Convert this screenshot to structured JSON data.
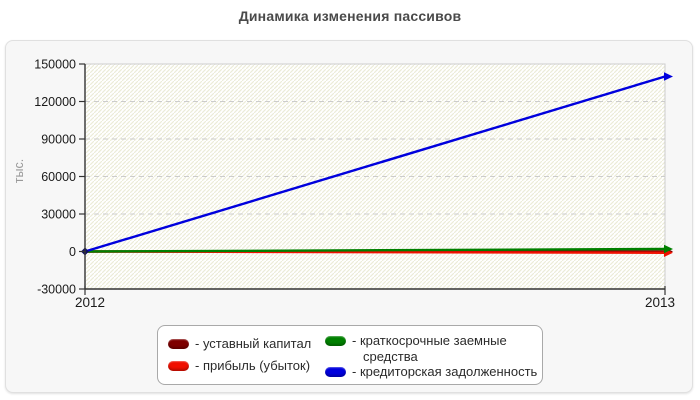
{
  "page": {
    "title": "Динамика изменения пассивов"
  },
  "chart_data": {
    "type": "line",
    "title": "Динамика изменения пассивов",
    "xlabel": "",
    "ylabel": "тыс.",
    "x": [
      2012,
      2013
    ],
    "xticklabels": [
      "2012",
      "2013"
    ],
    "yticks": [
      -30000,
      0,
      30000,
      60000,
      90000,
      120000,
      150000
    ],
    "ylim": [
      -30000,
      150000
    ],
    "grid": "horizontal-dashed",
    "plot_background": "white-with-diagonal-hatch",
    "legend_position": "bottom-center-box",
    "line_end_style": "arrowhead",
    "series": [
      {
        "name": "уставный капитал",
        "color": "#7e0000",
        "values": [
          10,
          10
        ]
      },
      {
        "name": "прибыль (убыток)",
        "color": "#f01000",
        "values": [
          0,
          -1000
        ]
      },
      {
        "name": "краткосрочные заемные средства",
        "color": "#008000",
        "values": [
          0,
          2000
        ]
      },
      {
        "name": "кредиторская задолженность",
        "color": "#0000dd",
        "values": [
          0,
          140000
        ]
      }
    ]
  },
  "legend": {
    "items": [
      {
        "label": "- уставный капитал"
      },
      {
        "label": "- прибыль (убыток)"
      },
      {
        "label": "- краткосрочные заемные средства"
      },
      {
        "label": "- кредиторская задолженность"
      }
    ]
  },
  "colors": {
    "axis": "#333333",
    "grid": "#cccccc",
    "hatch": "#ececd8",
    "tick_text": "#1a1a1a",
    "ylabel_text": "#999999",
    "origin_marker": "#101060"
  }
}
